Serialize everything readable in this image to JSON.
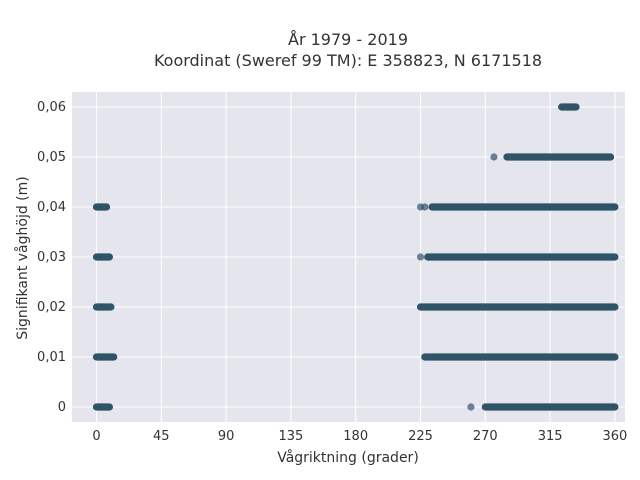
{
  "chart_data": {
    "type": "scatter",
    "title": [
      "År 1979 - 2019",
      "Koordinat (Sweref 99 TM): E 358823, N 6171518"
    ],
    "xlabel": "Vågriktning (grader)",
    "ylabel": "Signifikant våghöjd (m)",
    "xlim": [
      -17,
      367
    ],
    "ylim": [
      -0.003,
      0.063
    ],
    "x_ticks": [
      0,
      45,
      90,
      135,
      180,
      225,
      270,
      315,
      360
    ],
    "x_tick_labels": [
      "0",
      "45",
      "90",
      "135",
      "180",
      "225",
      "270",
      "315",
      "360"
    ],
    "y_ticks": [
      0,
      0.01,
      0.02,
      0.03,
      0.04,
      0.05,
      0.06
    ],
    "y_tick_labels": [
      "0",
      "0,01",
      "0,02",
      "0,03",
      "0,04",
      "0,05",
      "0,06"
    ],
    "grid": true,
    "marker_color": "#2f5468",
    "plot_background": "#e5e5ee",
    "series": [
      {
        "values_description_note_free": null,
        "points": [
          {
            "y": 0,
            "x_ranges": [
              [
                0,
                9
              ],
              [
                270,
                360
              ]
            ],
            "sparse_x": [
              260
            ]
          },
          {
            "y": 0.01,
            "x_ranges": [
              [
                0,
                12
              ],
              [
                228,
                360
              ]
            ],
            "sparse_x": []
          },
          {
            "y": 0.02,
            "x_ranges": [
              [
                0,
                10
              ],
              [
                225,
                360
              ]
            ],
            "sparse_x": []
          },
          {
            "y": 0.03,
            "x_ranges": [
              [
                0,
                9
              ],
              [
                230,
                360
              ]
            ],
            "sparse_x": [
              225
            ]
          },
          {
            "y": 0.04,
            "x_ranges": [
              [
                0,
                7
              ],
              [
                233,
                360
              ]
            ],
            "sparse_x": [
              225,
              228
            ]
          },
          {
            "y": 0.05,
            "x_ranges": [
              [
                285,
                357
              ]
            ],
            "sparse_x": [
              276
            ]
          },
          {
            "y": 0.06,
            "x_ranges": [
              [
                323,
                333
              ]
            ],
            "sparse_x": []
          }
        ]
      }
    ]
  }
}
